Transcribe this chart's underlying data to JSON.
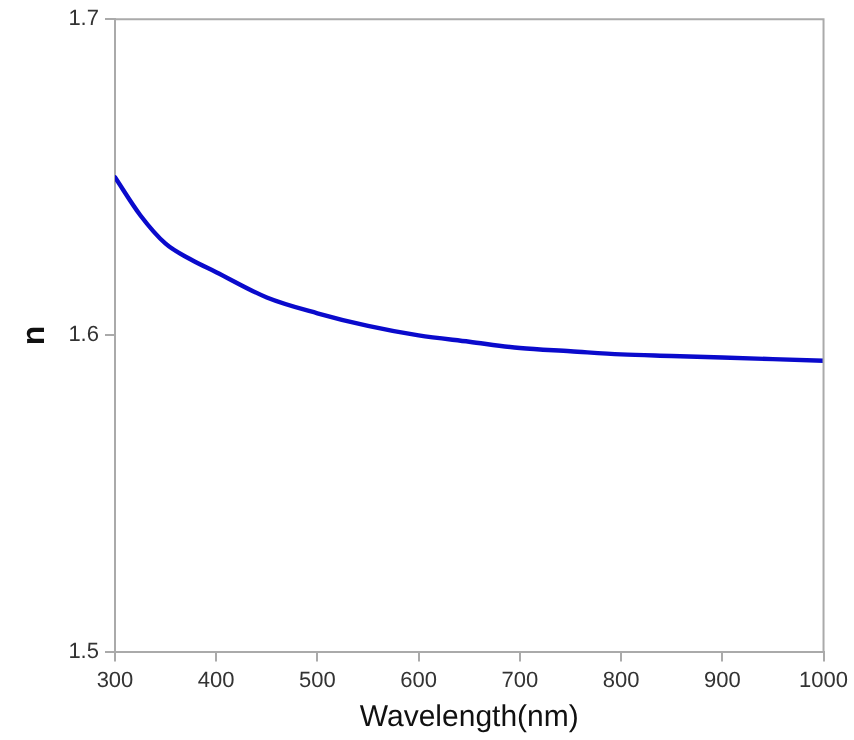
{
  "chart_data": {
    "type": "line",
    "xlabel": "Wavelength(nm)",
    "ylabel": "n",
    "series": [
      {
        "color": "#0a0acc",
        "x": [
          300,
          325,
          350,
          375,
          400,
          450,
          500,
          550,
          600,
          650,
          700,
          750,
          800,
          850,
          900,
          950,
          1000
        ],
        "values": [
          1.65,
          1.638,
          1.629,
          1.624,
          1.62,
          1.612,
          1.607,
          1.603,
          1.6,
          1.598,
          1.596,
          1.595,
          1.594,
          1.5935,
          1.593,
          1.5925,
          1.592
        ]
      }
    ],
    "xlim": [
      300,
      1000
    ],
    "xticks": [
      300,
      400,
      500,
      600,
      700,
      800,
      900,
      1000
    ],
    "ylim": [
      1.5,
      1.7
    ],
    "yticks": [
      1.5,
      1.6,
      1.7
    ],
    "grid": false,
    "legend": false,
    "marker": "none",
    "line_style": "solid"
  }
}
